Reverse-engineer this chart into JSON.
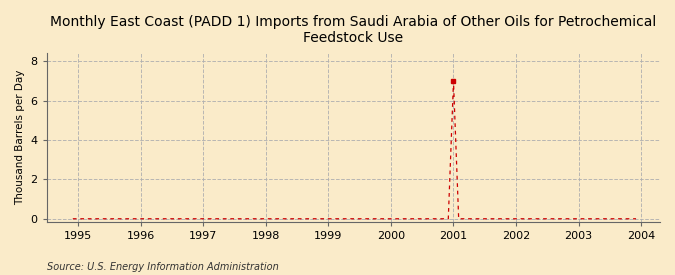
{
  "title": "Monthly East Coast (PADD 1) Imports from Saudi Arabia of Other Oils for Petrochemical\nFeedstock Use",
  "ylabel": "Thousand Barrels per Day",
  "source": "Source: U.S. Energy Information Administration",
  "xlim": [
    1994.5,
    2004.3
  ],
  "ylim": [
    -0.15,
    8.4
  ],
  "yticks": [
    0,
    2,
    4,
    6,
    8
  ],
  "xticks": [
    1995,
    1996,
    1997,
    1998,
    1999,
    2000,
    2001,
    2002,
    2003,
    2004
  ],
  "background_color": "#faebc9",
  "plot_bg_color": "#faebc9",
  "line_color": "#cc0000",
  "grid_color": "#b0b0b0",
  "title_fontsize": 10,
  "label_fontsize": 7.5,
  "tick_fontsize": 8,
  "marker_x": 2001.0,
  "marker_y": 6.978,
  "marker_color": "#cc0000",
  "marker_size": 3.5,
  "data_x": [
    1994.917,
    1995.0,
    1995.083,
    1995.167,
    1995.25,
    1995.333,
    1995.417,
    1995.5,
    1995.583,
    1995.667,
    1995.75,
    1995.833,
    1995.917,
    1996.0,
    1996.083,
    1996.167,
    1996.25,
    1996.333,
    1996.417,
    1996.5,
    1996.583,
    1996.667,
    1996.75,
    1996.833,
    1996.917,
    1997.0,
    1997.083,
    1997.167,
    1997.25,
    1997.333,
    1997.417,
    1997.5,
    1997.583,
    1997.667,
    1997.75,
    1997.833,
    1997.917,
    1998.0,
    1998.083,
    1998.167,
    1998.25,
    1998.333,
    1998.417,
    1998.5,
    1998.583,
    1998.667,
    1998.75,
    1998.833,
    1998.917,
    1999.0,
    1999.083,
    1999.167,
    1999.25,
    1999.333,
    1999.417,
    1999.5,
    1999.583,
    1999.667,
    1999.75,
    1999.833,
    1999.917,
    2000.0,
    2000.083,
    2000.167,
    2000.25,
    2000.333,
    2000.417,
    2000.5,
    2000.583,
    2000.667,
    2000.75,
    2000.833,
    2000.917,
    2001.0,
    2001.083,
    2001.167,
    2001.25,
    2001.333,
    2001.417,
    2001.5,
    2001.583,
    2001.667,
    2001.75,
    2001.833,
    2001.917,
    2002.0,
    2002.083,
    2002.167,
    2002.25,
    2002.333,
    2002.417,
    2002.5,
    2002.583,
    2002.667,
    2002.75,
    2002.833,
    2002.917,
    2003.0,
    2003.083,
    2003.167,
    2003.25,
    2003.333,
    2003.417,
    2003.5,
    2003.583,
    2003.667,
    2003.75,
    2003.833,
    2003.917
  ],
  "data_y": [
    0,
    0,
    0,
    0,
    0,
    0,
    0,
    0,
    0,
    0,
    0,
    0,
    0,
    0,
    0,
    0,
    0,
    0,
    0,
    0,
    0,
    0,
    0,
    0,
    0,
    0,
    0,
    0,
    0,
    0,
    0,
    0,
    0,
    0,
    0,
    0,
    0,
    0,
    0,
    0,
    0,
    0,
    0,
    0,
    0,
    0,
    0,
    0,
    0,
    0,
    0,
    0,
    0,
    0,
    0,
    0,
    0,
    0,
    0,
    0,
    0,
    0,
    0,
    0,
    0,
    0,
    0,
    0,
    0,
    0,
    0,
    0,
    0,
    6.978,
    0,
    0,
    0,
    0,
    0,
    0,
    0,
    0,
    0,
    0,
    0,
    0,
    0,
    0,
    0,
    0,
    0,
    0,
    0,
    0,
    0,
    0,
    0,
    0,
    0,
    0,
    0,
    0,
    0,
    0,
    0,
    0,
    0,
    0,
    0
  ]
}
